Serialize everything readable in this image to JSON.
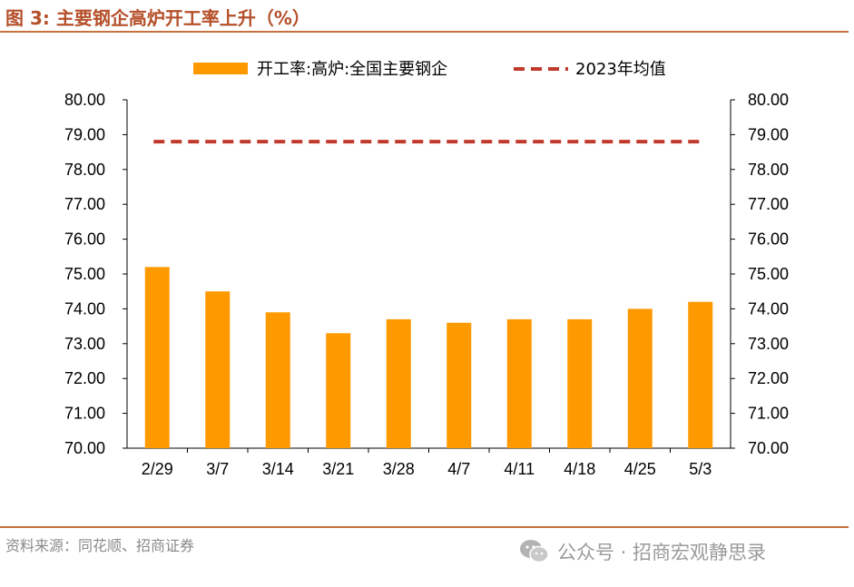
{
  "title": "图 3:  主要钢企高炉开工率上升（%）",
  "source": "资料来源：同花顺、招商证券",
  "watermark": "公众号 · 招商宏观静思录",
  "colors": {
    "bar": "#ff9900",
    "avg_line": "#c0392b",
    "accent": "#c8703e",
    "title": "#b5502a"
  },
  "chart_data": {
    "type": "bar",
    "categories": [
      "2/29",
      "3/7",
      "3/14",
      "3/21",
      "3/28",
      "4/7",
      "4/11",
      "4/18",
      "4/25",
      "5/3"
    ],
    "series": [
      {
        "name": "开工率:高炉:全国主要钢企",
        "type": "bar",
        "values": [
          75.2,
          74.5,
          73.9,
          73.3,
          73.7,
          73.6,
          73.7,
          73.7,
          74.0,
          74.2
        ]
      },
      {
        "name": "2023年均值",
        "type": "dashed-line",
        "values": [
          78.8,
          78.8,
          78.8,
          78.8,
          78.8,
          78.8,
          78.8,
          78.8,
          78.8,
          78.8
        ]
      }
    ],
    "ylim": [
      70,
      80
    ],
    "yticks": [
      "70.00",
      "71.00",
      "72.00",
      "73.00",
      "74.00",
      "75.00",
      "76.00",
      "77.00",
      "78.00",
      "79.00",
      "80.00"
    ],
    "y2ticks": [
      "70.00",
      "71.00",
      "72.00",
      "73.00",
      "74.00",
      "75.00",
      "76.00",
      "77.00",
      "78.00",
      "79.00",
      "80.00"
    ],
    "legend_position": "top-center",
    "grid": false
  }
}
